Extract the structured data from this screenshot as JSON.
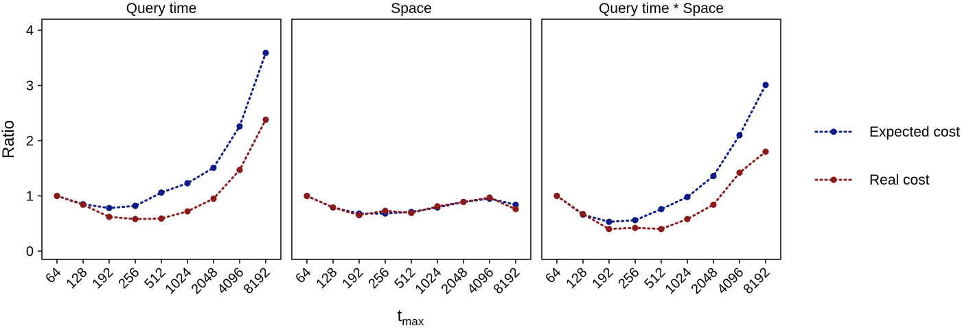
{
  "chart_data": {
    "type": "line",
    "ylabel": "Ratio",
    "xlabel_main": "t",
    "xlabel_sub": "max",
    "categories": [
      "64",
      "128",
      "192",
      "256",
      "512",
      "1024",
      "2048",
      "4096",
      "8192"
    ],
    "yticks": [
      "0",
      "1",
      "2",
      "3",
      "4"
    ],
    "ylim": [
      -0.15,
      4.2
    ],
    "legend_position": "right",
    "series_meta": [
      {
        "name": "Expected cost",
        "color": "#0d1a8a"
      },
      {
        "name": "Real cost",
        "color": "#8b1a1a"
      }
    ],
    "panels": [
      {
        "title": "Query time",
        "series": [
          {
            "name": "Expected cost",
            "values": [
              1.0,
              0.85,
              0.78,
              0.82,
              1.06,
              1.23,
              1.51,
              2.26,
              3.59
            ]
          },
          {
            "name": "Real cost",
            "values": [
              1.0,
              0.84,
              0.62,
              0.58,
              0.59,
              0.72,
              0.95,
              1.47,
              2.38
            ]
          }
        ]
      },
      {
        "title": "Space",
        "series": [
          {
            "name": "Expected cost",
            "values": [
              1.0,
              0.79,
              0.68,
              0.68,
              0.71,
              0.79,
              0.89,
              0.95,
              0.84
            ]
          },
          {
            "name": "Real cost",
            "values": [
              1.0,
              0.79,
              0.65,
              0.73,
              0.69,
              0.81,
              0.89,
              0.97,
              0.76
            ]
          }
        ]
      },
      {
        "title": "Query time * Space",
        "series": [
          {
            "name": "Expected cost",
            "values": [
              1.0,
              0.66,
              0.53,
              0.56,
              0.76,
              0.98,
              1.36,
              2.1,
              3.01
            ]
          },
          {
            "name": "Real cost",
            "values": [
              1.0,
              0.67,
              0.4,
              0.42,
              0.4,
              0.58,
              0.84,
              1.42,
              1.8
            ]
          }
        ]
      }
    ]
  }
}
